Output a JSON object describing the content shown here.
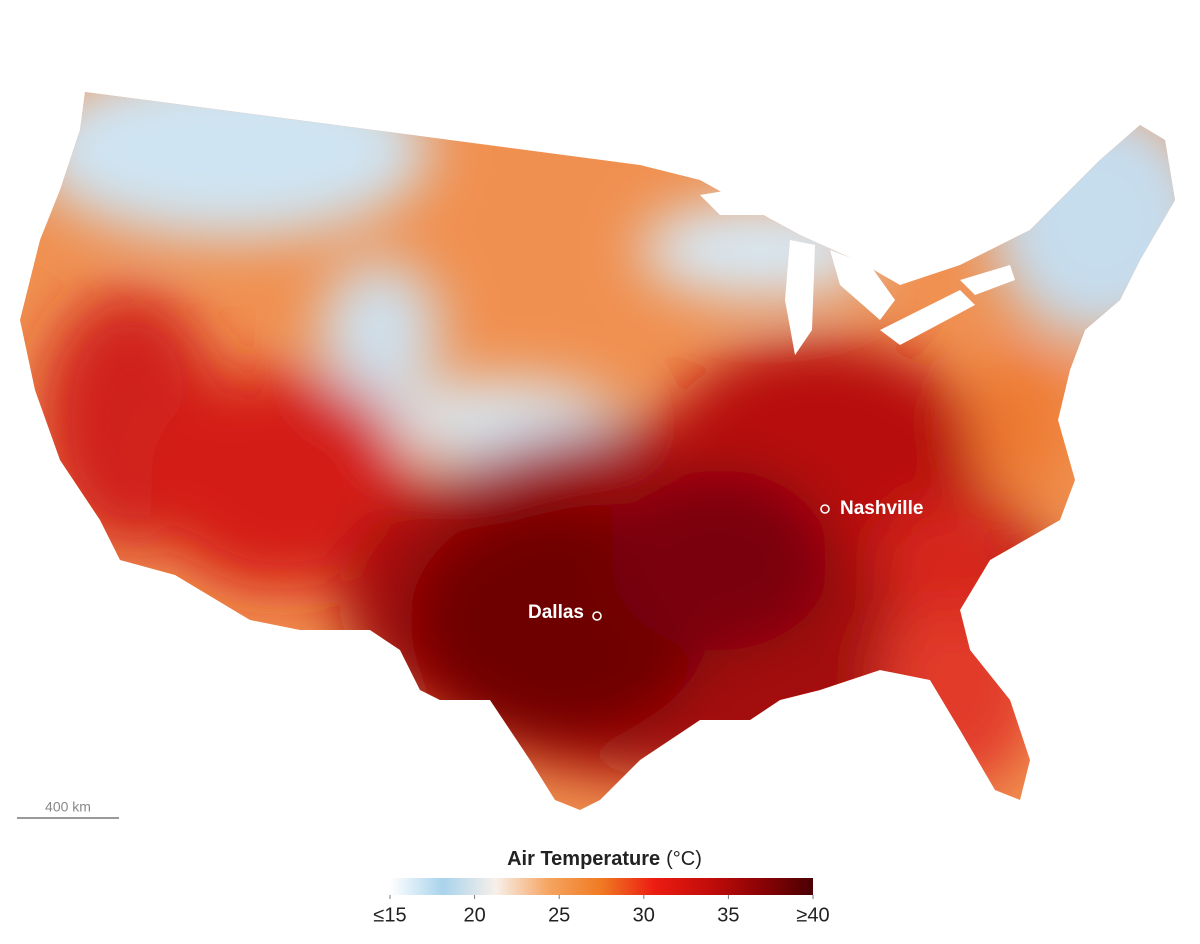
{
  "map": {
    "cities": [
      {
        "label": "Nashville"
      },
      {
        "label": "Dallas"
      }
    ],
    "scale_bar": "400 km"
  },
  "legend": {
    "title": "Air Temperature",
    "unit": "(°C)",
    "range": [
      15,
      40
    ],
    "ticks": [
      {
        "value": 15,
        "label": "≤15"
      },
      20,
      25,
      30,
      35,
      {
        "value": 40,
        "label": "≥40"
      }
    ],
    "colors": [
      "#ffffff",
      "#a9d3ec",
      "#f7f0ea",
      "#f5a461",
      "#f07a22",
      "#ec1c12",
      "#c40d0a",
      "#8c0305",
      "#4a0004"
    ]
  }
}
